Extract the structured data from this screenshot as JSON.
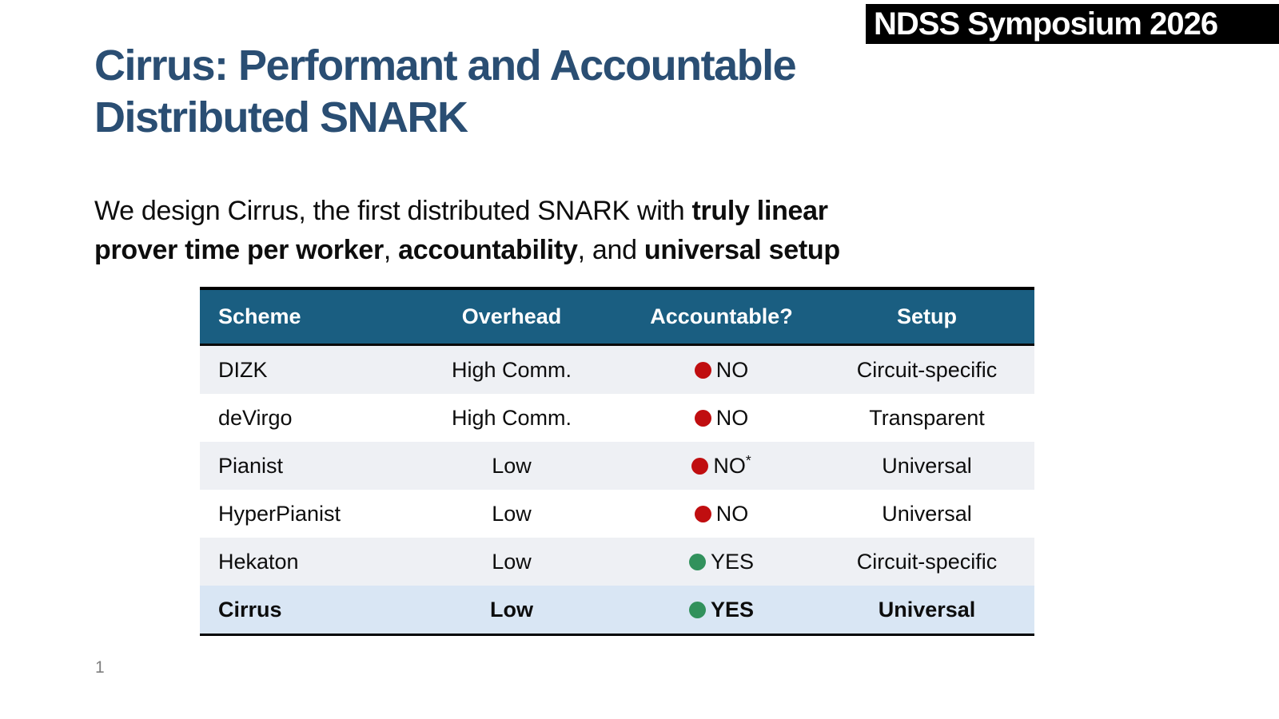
{
  "badge": {
    "text": "NDSS Symposium 2026"
  },
  "title": {
    "line1": "Cirrus: Performant and Accountable",
    "line2": "Distributed SNARK"
  },
  "subtitle": {
    "segments": [
      {
        "text": "We design Cirrus, the first distributed SNARK with ",
        "bold": false
      },
      {
        "text": "truly linear",
        "bold": true
      },
      {
        "br": true
      },
      {
        "text": "prover time per worker",
        "bold": true
      },
      {
        "text": ", ",
        "bold": false
      },
      {
        "text": "accountability",
        "bold": true
      },
      {
        "text": ", and ",
        "bold": false
      },
      {
        "text": "universal setup",
        "bold": true
      }
    ]
  },
  "table": {
    "headers": [
      "Scheme",
      "Overhead",
      "Accountable?",
      "Setup"
    ],
    "rows": [
      {
        "scheme": "DIZK",
        "overhead": "High Comm.",
        "accountable": {
          "value": "NO",
          "dot": "red",
          "note": ""
        },
        "setup": "Circuit-specific",
        "highlight": false
      },
      {
        "scheme": "deVirgo",
        "overhead": "High Comm.",
        "accountable": {
          "value": "NO",
          "dot": "red",
          "note": ""
        },
        "setup": "Transparent",
        "highlight": false
      },
      {
        "scheme": "Pianist",
        "overhead": "Low",
        "accountable": {
          "value": "NO",
          "dot": "red",
          "note": "*"
        },
        "setup": "Universal",
        "highlight": false
      },
      {
        "scheme": "HyperPianist",
        "overhead": "Low",
        "accountable": {
          "value": "NO",
          "dot": "red",
          "note": ""
        },
        "setup": "Universal",
        "highlight": false
      },
      {
        "scheme": "Hekaton",
        "overhead": "Low",
        "accountable": {
          "value": "YES",
          "dot": "green",
          "note": ""
        },
        "setup": "Circuit-specific",
        "highlight": false
      },
      {
        "scheme": "Cirrus",
        "overhead": "Low",
        "accountable": {
          "value": "YES",
          "dot": "green",
          "note": ""
        },
        "setup": "Universal",
        "highlight": true
      }
    ]
  },
  "page_number": "1",
  "colors": {
    "title": "#2A4E73",
    "header_bg": "#1A5E81",
    "row_alt_bg": "#EEF0F4",
    "highlight_bg": "#D9E6F4",
    "dot_red": "#C00E10",
    "dot_green": "#31915C",
    "badge_bg": "#000000",
    "badge_text": "#FFFFFF"
  }
}
